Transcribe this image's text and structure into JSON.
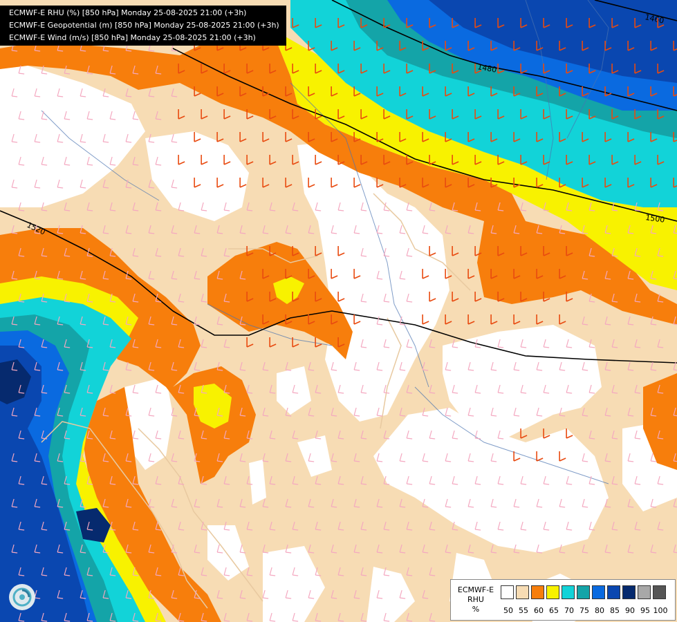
{
  "header": {
    "lines": [
      "ECMWF-E RHU (%) [850 hPa] Monday 25-08-2025 21:00 (+3h)",
      "ECMWF-E Geopotential (m) [850 hPa] Monday 25-08-2025 21:00 (+3h)",
      "ECMWF-E Wind (m/s) [850 hPa] Monday 25-08-2025 21:00 (+3h)"
    ]
  },
  "contours": {
    "labels": [
      "1460",
      "1480",
      "1500",
      "1520"
    ]
  },
  "legend": {
    "name_lines": [
      "ECMWF-E",
      "RHU",
      "%"
    ],
    "ticks": [
      "50",
      "55",
      "60",
      "65",
      "70",
      "75",
      "80",
      "85",
      "90",
      "95",
      "100"
    ],
    "colors": [
      "#ffffff",
      "#f7dcb4",
      "#f77e0c",
      "#f8f200",
      "#12d3d8",
      "#14a4a8",
      "#0a6ae0",
      "#0a47b0",
      "#062a6e",
      "#a8a8a8",
      "#555555"
    ]
  },
  "map_colors": {
    "rh50": "#ffffff",
    "rh55": "#f7dcb4",
    "rh60": "#f77e0c",
    "rh65": "#f8f200",
    "rh70": "#12d3d8",
    "rh75": "#14a4a8",
    "rh80": "#0a6ae0",
    "rh85": "#0a47b0",
    "rh90": "#062a6e",
    "coast": "#e8c9a0",
    "river": "#4a74b0",
    "border": "#b0a080",
    "geopotential": "#000000",
    "barb_weak": "#f4a8c0",
    "barb_strong": "#e84a10"
  }
}
